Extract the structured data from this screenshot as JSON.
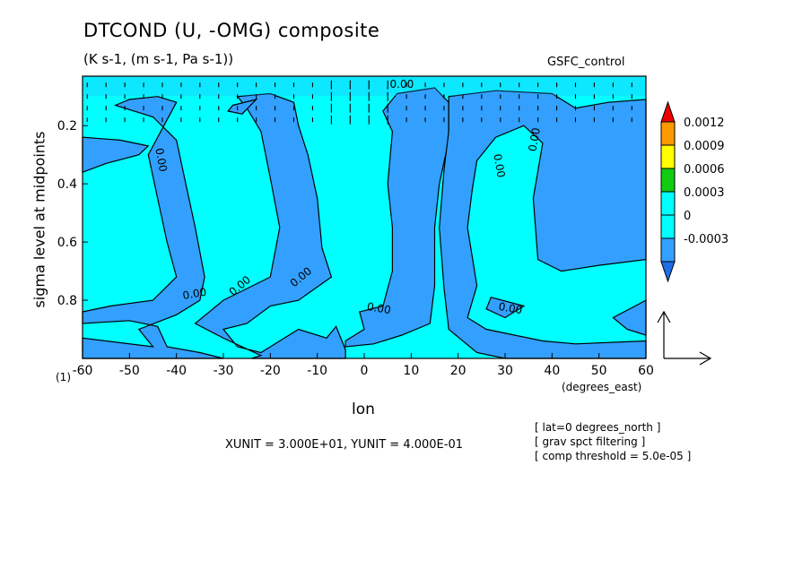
{
  "title": "DTCOND (U, -OMG) composite",
  "subtitle": "(K s-1, (m s-1, Pa s-1))",
  "run_label": "GSFC_control",
  "panel_number": "(1)",
  "unit_text": "XUNIT = 3.000E+01, YUNIT = 4.000E-01",
  "notes": [
    "[ lat=0 degrees_north ]",
    "[ grav spct filtering ]",
    "[ comp threshold = 5.0e-05 ]"
  ],
  "colors": {
    "negative_fill": "#33a0ff",
    "zero_fill": "#00ffff",
    "bar_0_0003": "#11cc11",
    "bar_0_0006": "#ffff00",
    "bar_0_0009": "#ff9900",
    "bar_0_0012": "#ee0000",
    "bar_low": "#1e6ee8"
  },
  "chart_data": {
    "type": "heatmap",
    "xlabel": "lon",
    "xunits": "(degrees_east)",
    "ylabel": "sigma level at midpoints",
    "xlim": [
      -60,
      60
    ],
    "ylim": [
      1.0,
      0.03
    ],
    "x_ticks": [
      -60,
      -50,
      -40,
      -30,
      -20,
      -10,
      0,
      10,
      20,
      30,
      40,
      50,
      60
    ],
    "y_ticks": [
      0.2,
      0.4,
      0.6,
      0.8
    ],
    "contour_label": "0.00",
    "contour_levels": [
      0,
      -0.0003
    ],
    "colorbar": {
      "labels": [
        "0.0012",
        "0.0009",
        "0.0006",
        "0.0003",
        "0",
        "-0.0003"
      ],
      "values": [
        0.0012,
        0.0009,
        0.0006,
        0.0003,
        0,
        -0.0003
      ]
    },
    "negative_regions_lon": [
      {
        "sigma": 0.2,
        "ranges": [
          [
            -53,
            -42
          ],
          [
            -22,
            -16
          ],
          [
            6,
            22
          ],
          [
            27,
            31
          ],
          [
            40,
            60
          ]
        ]
      },
      {
        "sigma": 0.4,
        "ranges": [
          [
            -60,
            -57
          ],
          [
            -45,
            -33
          ],
          [
            -22,
            -11
          ],
          [
            5,
            19
          ],
          [
            36,
            60
          ]
        ]
      },
      {
        "sigma": 0.6,
        "ranges": [
          [
            -45,
            -32
          ],
          [
            -20,
            -7
          ],
          [
            4,
            18
          ],
          [
            38,
            55
          ]
        ]
      },
      {
        "sigma": 0.8,
        "ranges": [
          [
            -60,
            -50
          ],
          [
            -45,
            -31
          ],
          [
            -18,
            -6
          ],
          [
            2,
            14
          ],
          [
            50,
            60
          ]
        ]
      }
    ],
    "vector_scale": {
      "x": "3.000E+01",
      "y": "4.000E-01"
    }
  }
}
